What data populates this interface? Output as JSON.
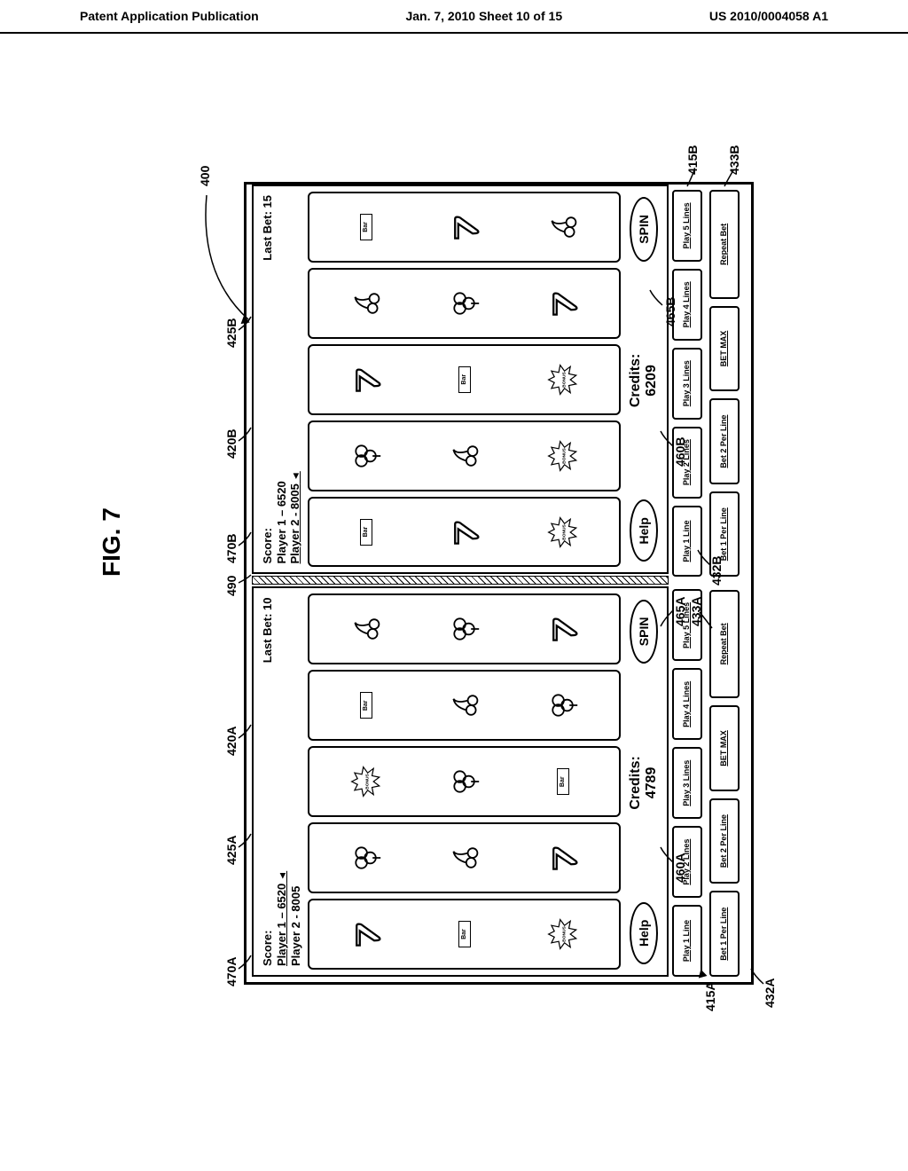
{
  "header": {
    "left": "Patent Application Publication",
    "center": "Jan. 7, 2010  Sheet 10 of 15",
    "right": "US 2010/0004058 A1"
  },
  "figure_label": "FIG. 7",
  "colors": {
    "stroke": "#000000",
    "background": "#ffffff"
  },
  "refs": {
    "main": "400",
    "panelA": {
      "score": "470A",
      "lastbet": "425A",
      "reels": "420A",
      "credits": "460A",
      "spin": "465A",
      "row1": "415A",
      "row2_left": "432A",
      "row2_mid": "433A"
    },
    "panelB": {
      "score": "470B",
      "lastbet": "425B",
      "reels": "420B",
      "credits": "460B",
      "spin": "465B",
      "row1": "415B",
      "row2_mid": "432B",
      "row2_right": "433B"
    },
    "divider": "490"
  },
  "panelA": {
    "score_title": "Score:",
    "player1": "Player 1 – 6520",
    "player2": "Player 2 - 8005",
    "last_bet": "Last Bet: 10",
    "help": "Help",
    "credits_label": "Credits:",
    "credits_value": "4789",
    "spin": "SPIN",
    "reels": [
      [
        "seven",
        "bar",
        "bonus"
      ],
      [
        "clover",
        "cherry",
        "seven"
      ],
      [
        "bonus",
        "clover",
        "bar"
      ],
      [
        "bar",
        "cherry",
        "clover"
      ],
      [
        "cherry",
        "clover",
        "seven"
      ]
    ],
    "row1": [
      "Play 1 Line",
      "Play 2 Lines",
      "Play 3 Lines",
      "Play 4 Lines",
      "Play 5 Lines"
    ],
    "row2": [
      "Bet 1 Per Line",
      "Bet 2 Per Line",
      "BET MAX",
      "Repeat Bet"
    ]
  },
  "panelB": {
    "score_title": "Score:",
    "player1": "Player 1 – 6520",
    "player2": "Player 2 - 8005",
    "last_bet": "Last Bet: 15",
    "help": "Help",
    "credits_label": "Credits:",
    "credits_value": "6209",
    "spin": "SPIN",
    "reels": [
      [
        "bar",
        "seven",
        "bonus"
      ],
      [
        "clover",
        "cherry",
        "bonus"
      ],
      [
        "seven",
        "bar",
        "bonus"
      ],
      [
        "cherry",
        "clover",
        "seven"
      ],
      [
        "bar",
        "seven",
        "cherry"
      ]
    ],
    "row1": [
      "Play 1 Line",
      "Play 2 Lines",
      "Play 3 Lines",
      "Play 4 Lines",
      "Play 5 Lines"
    ],
    "row2": [
      "Bet 1 Per Line",
      "Bet 2 Per Line",
      "BET MAX",
      "Repeat Bet"
    ]
  },
  "symbols": {
    "bar_text": "Bar",
    "bonus_text": "BONUS"
  }
}
